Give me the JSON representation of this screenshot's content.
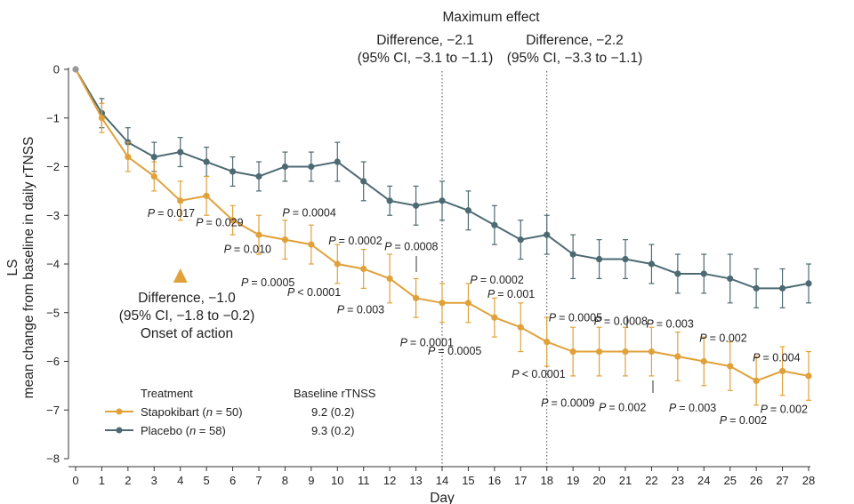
{
  "chart_data": {
    "type": "line",
    "title": "Maximum effect",
    "xlabel": "Day",
    "ylabel_line1": "LS",
    "ylabel_line2": "mean change from baseline in daily rTNSS",
    "x": [
      0,
      1,
      2,
      3,
      4,
      5,
      6,
      7,
      8,
      9,
      10,
      11,
      12,
      13,
      14,
      15,
      16,
      17,
      18,
      19,
      20,
      21,
      22,
      23,
      24,
      25,
      26,
      27,
      28
    ],
    "xlim": [
      0,
      28
    ],
    "ylim": [
      -8,
      0
    ],
    "yticks": [
      0,
      -1,
      -2,
      -3,
      -4,
      -5,
      -6,
      -7,
      -8
    ],
    "ytick_labels": [
      "0",
      "−1",
      "−2",
      "−3",
      "−4",
      "−5",
      "−6",
      "−7",
      "−8"
    ],
    "series": [
      {
        "name": "Placebo",
        "n": "58",
        "baseline": "9.3 (0.2)",
        "color": "#4d6a73",
        "values": [
          0,
          -0.9,
          -1.5,
          -1.8,
          -1.7,
          -1.9,
          -2.1,
          -2.2,
          -2.0,
          -2.0,
          -1.9,
          -2.3,
          -2.7,
          -2.8,
          -2.7,
          -2.9,
          -3.2,
          -3.5,
          -3.4,
          -3.8,
          -3.9,
          -3.9,
          -4.0,
          -4.2,
          -4.2,
          -4.3,
          -4.5,
          -4.5,
          -4.4
        ],
        "ci_low": [
          0,
          -1.2,
          -1.8,
          -2.1,
          -2.0,
          -2.2,
          -2.4,
          -2.5,
          -2.3,
          -2.3,
          -2.3,
          -2.7,
          -3.0,
          -3.2,
          -3.1,
          -3.3,
          -3.6,
          -3.9,
          -3.8,
          -4.3,
          -4.3,
          -4.3,
          -4.4,
          -4.6,
          -4.6,
          -4.8,
          -4.9,
          -4.9,
          -4.8
        ],
        "ci_high": [
          0,
          -0.6,
          -1.2,
          -1.5,
          -1.4,
          -1.6,
          -1.8,
          -1.9,
          -1.7,
          -1.7,
          -1.5,
          -1.9,
          -2.4,
          -2.4,
          -2.3,
          -2.5,
          -2.8,
          -3.1,
          -3.0,
          -3.4,
          -3.5,
          -3.5,
          -3.6,
          -3.8,
          -3.8,
          -3.8,
          -4.1,
          -4.1,
          -4.0
        ]
      },
      {
        "name": "Stapokibart",
        "n": "50",
        "baseline": "9.2 (0.2)",
        "color": "#e0a13a",
        "values": [
          0,
          -1.0,
          -1.8,
          -2.2,
          -2.7,
          -2.6,
          -3.1,
          -3.4,
          -3.5,
          -3.6,
          -4.0,
          -4.1,
          -4.3,
          -4.7,
          -4.8,
          -4.8,
          -5.1,
          -5.3,
          -5.6,
          -5.8,
          -5.8,
          -5.8,
          -5.8,
          -5.9,
          -6.0,
          -6.1,
          -6.4,
          -6.2,
          -6.3
        ],
        "ci_low": [
          0,
          -1.3,
          -2.1,
          -2.5,
          -3.1,
          -3.0,
          -3.4,
          -3.8,
          -3.9,
          -4.0,
          -4.4,
          -4.5,
          -4.8,
          -5.1,
          -5.2,
          -5.2,
          -5.5,
          -5.8,
          -6.1,
          -6.3,
          -6.3,
          -6.3,
          -6.3,
          -6.4,
          -6.5,
          -6.6,
          -6.9,
          -6.7,
          -6.8
        ],
        "ci_high": [
          0,
          -0.7,
          -1.5,
          -1.9,
          -2.3,
          -2.2,
          -2.8,
          -3.0,
          -3.1,
          -3.2,
          -3.6,
          -3.7,
          -3.8,
          -4.3,
          -4.4,
          -4.4,
          -4.7,
          -4.8,
          -5.1,
          -5.3,
          -5.3,
          -5.3,
          -5.3,
          -5.4,
          -5.5,
          -5.6,
          -5.9,
          -5.7,
          -5.8
        ]
      }
    ],
    "p_values": [
      {
        "day": 4,
        "text": "= 0.017"
      },
      {
        "day": 5,
        "text": "= 0.029"
      },
      {
        "day": 6,
        "text": "= 0.010"
      },
      {
        "day": 7,
        "text": "= 0.0005"
      },
      {
        "day": 8,
        "text": "= 0.0004"
      },
      {
        "day": 9,
        "text": "< 0.0001"
      },
      {
        "day": 10,
        "text": "= 0.0002"
      },
      {
        "day": 11,
        "text": "= 0.003"
      },
      {
        "day": 12,
        "text": "= 0.0008"
      },
      {
        "day": 13,
        "text": "= 0.0001"
      },
      {
        "day": 14,
        "text": "= 0.0005"
      },
      {
        "day": 15,
        "text": "= 0.0002"
      },
      {
        "day": 16,
        "text": "= 0.001"
      },
      {
        "day": 17,
        "text": "< 0.0001"
      },
      {
        "day": 18,
        "text": "= 0.0005"
      },
      {
        "day": 19,
        "text": "= 0.0009"
      },
      {
        "day": 20,
        "text": "= 0.0008"
      },
      {
        "day": 21,
        "text": "= 0.002"
      },
      {
        "day": 22,
        "text": "= 0.003"
      },
      {
        "day": 23,
        "text": "= 0.003"
      },
      {
        "day": 24,
        "text": "= 0.002"
      },
      {
        "day": 25,
        "text": "= 0.002"
      },
      {
        "day": 26,
        "text": "= 0.004"
      },
      {
        "day": 27,
        "text": "= 0.002"
      }
    ],
    "annotations": {
      "onset_line1": "Difference, −1.0",
      "onset_line2": "(95% CI, −1.8 to −0.2)",
      "onset_line3": "Onset of action",
      "day14_line1": "Difference, −2.1",
      "day14_line2": "(95% CI, −3.1 to −1.1)",
      "day18_line1": "Difference, −2.2",
      "day18_line2": "(95% CI, −3.3 to −1.1)"
    },
    "legend": {
      "header_treatment": "Treatment",
      "header_baseline": "Baseline rTNSS"
    },
    "vlines_days": [
      14,
      18
    ],
    "onset_day": 4
  }
}
